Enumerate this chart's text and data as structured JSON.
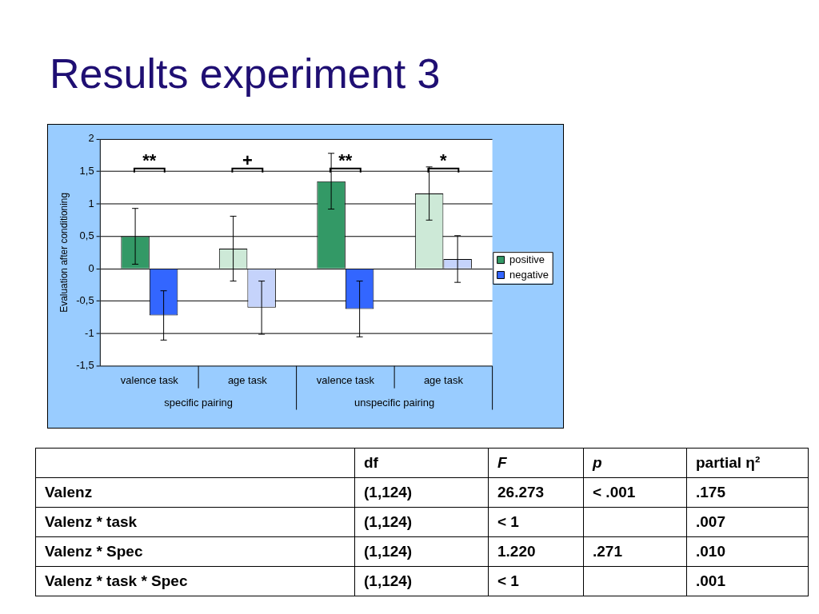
{
  "chart_data": [
    {
      "type": "bar",
      "title": "Results experiment 3",
      "ylabel": "Evaluation after conditioning",
      "categories": [
        "valence task",
        "age task",
        "valence task",
        "age task"
      ],
      "series": [
        {
          "name": "positive",
          "color": "#339966",
          "colors": [
            "#339966",
            "#cde9d7",
            "#339966",
            "#cde9d7"
          ],
          "values": [
            0.5,
            0.31,
            1.35,
            1.16
          ],
          "errors": [
            0.43,
            0.5,
            0.43,
            0.41
          ]
        },
        {
          "name": "negative",
          "color": "#3366ff",
          "colors": [
            "#3366ff",
            "#c5d3fb",
            "#3366ff",
            "#c5d3fb"
          ],
          "values": [
            -0.72,
            -0.6,
            -0.62,
            0.15
          ],
          "errors": [
            0.38,
            0.41,
            0.43,
            0.36
          ]
        }
      ],
      "ylim": [
        -1.5,
        2
      ],
      "yticks": [
        {
          "value": -1.5,
          "label": "-1,5"
        },
        {
          "value": -1,
          "label": "-1"
        },
        {
          "value": -0.5,
          "label": "-0,5"
        },
        {
          "value": 0,
          "label": "0"
        },
        {
          "value": 0.5,
          "label": "0,5"
        },
        {
          "value": 1,
          "label": "1"
        },
        {
          "value": 1.5,
          "label": "1,5"
        },
        {
          "value": 2,
          "label": "2"
        }
      ],
      "grid": "y",
      "legend": "right",
      "annotations": [
        "**",
        "+",
        "**",
        "*",
        "specific pairing",
        "unspecific pairing"
      ]
    },
    {
      "type": "other",
      "annotations": [
        null,
        "df",
        "F",
        "p",
        "partial η²",
        "Valenz",
        "(1,124)",
        "26.273",
        "< .001",
        ".175",
        "Valenz * task",
        "(1,124)",
        "< 1",
        null,
        ".007",
        "Valenz * Spec",
        "(1,124)",
        "1.220",
        ".271",
        ".010",
        "Valenz * task  *  Spec",
        "(1,124)",
        "< 1",
        null,
        ".001"
      ]
    }
  ]
}
